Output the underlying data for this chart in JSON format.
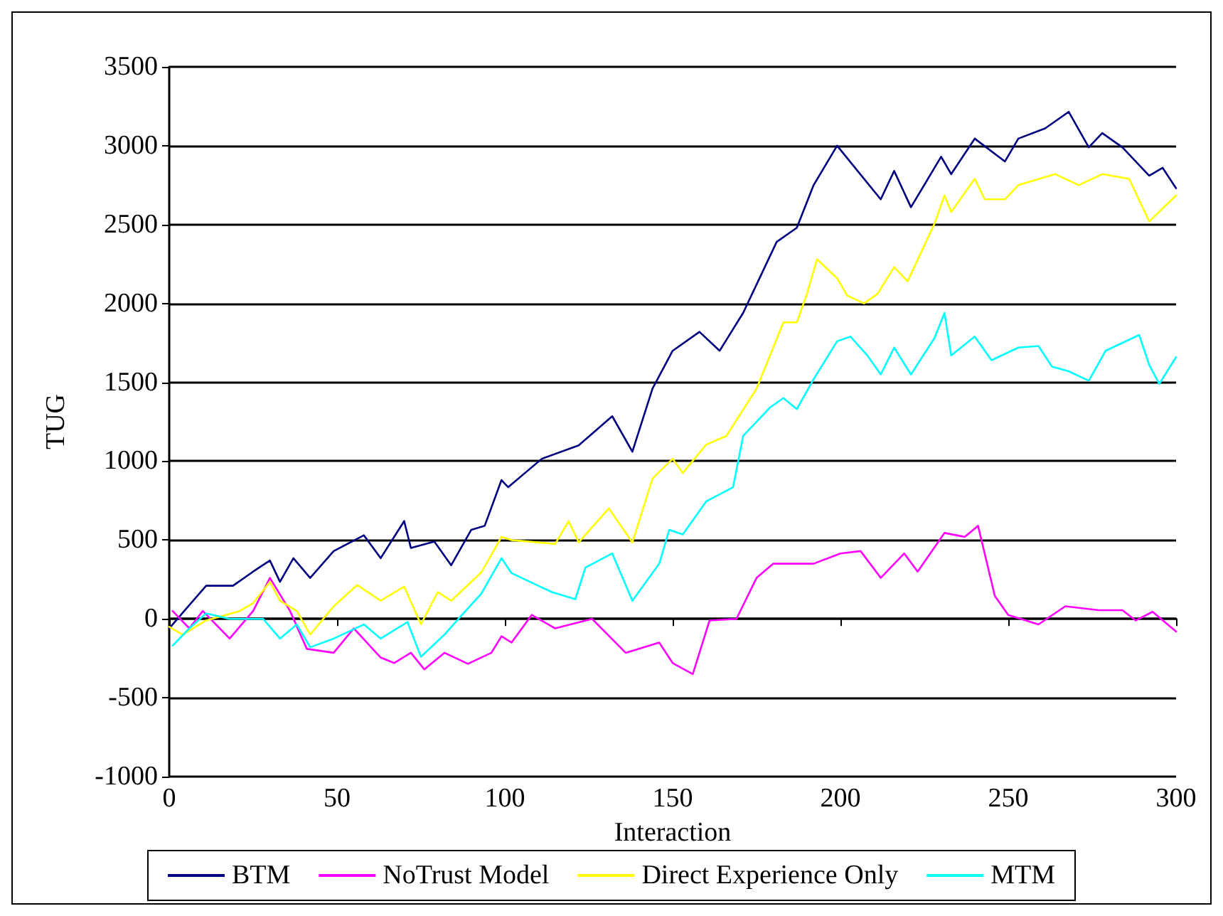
{
  "chart_data": {
    "type": "line",
    "xlabel": "Interaction",
    "ylabel": "TUG",
    "xlim": [
      0,
      300
    ],
    "xticks": [
      0,
      50,
      100,
      150,
      200,
      250,
      300
    ],
    "ylim": [
      -1000,
      3500
    ],
    "yticks": [
      -1000,
      -500,
      0,
      500,
      1000,
      1500,
      2000,
      2500,
      3000,
      3500
    ],
    "grid": "y",
    "legend": "bottom",
    "marker": "none",
    "line_style": "solid",
    "series": [
      {
        "name": "BTM",
        "color": "#000080",
        "x": [
          0,
          11,
          19,
          25,
          30,
          33,
          37,
          42,
          49,
          58,
          63,
          70,
          72,
          79,
          84,
          90,
          94,
          99,
          101,
          111,
          122,
          132,
          138,
          144,
          150,
          158,
          164,
          171,
          181,
          187,
          192,
          199,
          212,
          216,
          221,
          230,
          233,
          240,
          249,
          253,
          261,
          268,
          274,
          278,
          284,
          292,
          296,
          300
        ],
        "values": [
          -60,
          210,
          210,
          300,
          370,
          235,
          385,
          260,
          430,
          530,
          385,
          620,
          450,
          490,
          340,
          565,
          590,
          880,
          835,
          1015,
          1100,
          1285,
          1060,
          1460,
          1700,
          1820,
          1700,
          1940,
          2390,
          2480,
          2750,
          3000,
          2660,
          2840,
          2610,
          2930,
          2820,
          3045,
          2900,
          3045,
          3110,
          3215,
          2990,
          3080,
          2990,
          2810,
          2860,
          2730
        ]
      },
      {
        "name": "NoTrust Model",
        "color": "#ff00ff",
        "x": [
          1,
          6,
          10,
          18,
          25,
          30,
          36,
          41,
          49,
          55,
          63,
          67,
          72,
          76,
          82,
          89,
          96,
          99,
          102,
          108,
          115,
          126,
          136,
          146,
          150,
          156,
          161,
          169,
          175,
          180,
          192,
          200,
          206,
          212,
          219,
          223,
          231,
          237,
          241,
          246,
          250,
          259,
          267,
          277,
          284,
          288,
          293,
          300
        ],
        "values": [
          50,
          -60,
          50,
          -125,
          50,
          260,
          50,
          -190,
          -215,
          -60,
          -245,
          -280,
          -215,
          -320,
          -215,
          -285,
          -215,
          -110,
          -150,
          25,
          -60,
          0,
          -215,
          -150,
          -280,
          -350,
          -10,
          0,
          260,
          350,
          350,
          415,
          430,
          260,
          415,
          300,
          545,
          520,
          590,
          145,
          25,
          -35,
          80,
          55,
          55,
          -10,
          45,
          -80
        ]
      },
      {
        "name": "Direct Experience Only",
        "color": "#ffff00",
        "x": [
          0,
          4,
          11,
          21,
          25,
          30,
          33,
          38,
          42,
          49,
          56,
          63,
          70,
          75,
          80,
          84,
          93,
          99,
          102,
          115,
          119,
          122,
          131,
          138,
          144,
          150,
          153,
          160,
          166,
          175,
          183,
          187,
          190,
          193,
          199,
          202,
          207,
          211,
          216,
          220,
          228,
          231,
          233,
          240,
          243,
          249,
          253,
          264,
          271,
          278,
          286,
          292,
          300
        ],
        "values": [
          -50,
          -100,
          -10,
          50,
          100,
          235,
          115,
          50,
          -100,
          80,
          215,
          115,
          205,
          -35,
          170,
          115,
          295,
          520,
          500,
          475,
          620,
          485,
          700,
          485,
          890,
          1015,
          925,
          1105,
          1160,
          1460,
          1880,
          1880,
          2060,
          2280,
          2160,
          2050,
          2000,
          2060,
          2230,
          2140,
          2505,
          2685,
          2580,
          2790,
          2660,
          2660,
          2750,
          2820,
          2750,
          2820,
          2790,
          2520,
          2685
        ]
      },
      {
        "name": "MTM",
        "color": "#00ffff",
        "x": [
          1,
          6,
          11,
          18,
          28,
          33,
          38,
          42,
          49,
          58,
          63,
          71,
          75,
          82,
          87,
          93,
          99,
          102,
          114,
          121,
          124,
          132,
          138,
          146,
          149,
          153,
          160,
          168,
          171,
          179,
          183,
          187,
          192,
          199,
          203,
          208,
          212,
          216,
          221,
          228,
          231,
          233,
          240,
          245,
          253,
          259,
          263,
          268,
          274,
          279,
          289,
          292,
          295,
          300
        ],
        "values": [
          -170,
          -60,
          35,
          0,
          0,
          -125,
          -35,
          -180,
          -125,
          -35,
          -125,
          -20,
          -240,
          -100,
          20,
          160,
          385,
          290,
          170,
          125,
          325,
          415,
          115,
          350,
          565,
          535,
          745,
          835,
          1160,
          1340,
          1400,
          1330,
          1520,
          1760,
          1790,
          1670,
          1550,
          1720,
          1550,
          1780,
          1940,
          1670,
          1790,
          1640,
          1720,
          1730,
          1600,
          1570,
          1510,
          1700,
          1800,
          1610,
          1490,
          1660
        ]
      }
    ]
  }
}
